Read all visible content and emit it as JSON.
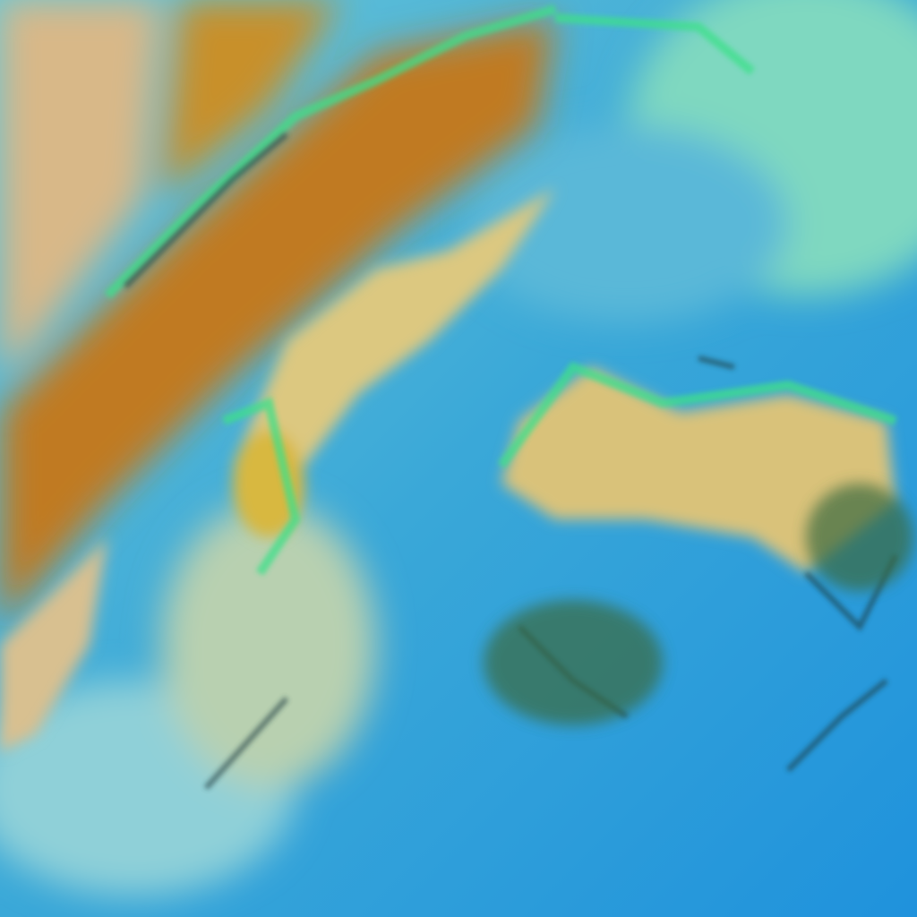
{
  "image": {
    "kind": "false-color satellite cloud imagery",
    "colors": {
      "ocean_blue": "#2a9fd8",
      "light_cyan": "#7fd0d8",
      "tan_cloud": "#d9c27a",
      "orange_high_cloud": "#c07a20",
      "green_edge": "#3ee08a",
      "dark_shadow": "#1a3a40"
    }
  }
}
